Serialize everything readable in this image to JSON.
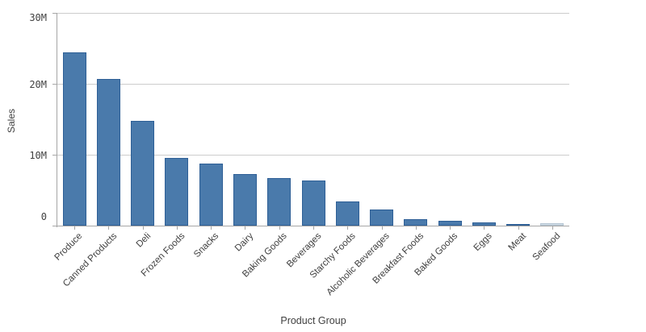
{
  "chart_data": {
    "type": "bar",
    "title": "",
    "xlabel": "Product Group",
    "ylabel": "Sales",
    "categories": [
      "Produce",
      "Canned Products",
      "Deli",
      "Frozen Foods",
      "Snacks",
      "Dairy",
      "Baking Goods",
      "Beverages",
      "Starchy Foods",
      "Alcoholic Beverages",
      "Breakfast Foods",
      "Baked Goods",
      "Eggs",
      "Meat",
      "Seafood"
    ],
    "values": [
      24.4,
      20.7,
      14.8,
      9.6,
      8.7,
      7.3,
      6.7,
      6.4,
      3.4,
      2.3,
      0.9,
      0.7,
      0.5,
      0.28,
      0.35
    ],
    "unit": "M",
    "ylim": [
      0,
      30
    ],
    "yticks": [
      {
        "value": 0,
        "label": "0"
      },
      {
        "value": 10,
        "label": "10M"
      },
      {
        "value": 20,
        "label": "20M"
      },
      {
        "value": 30,
        "label": "30M"
      }
    ],
    "grid": true,
    "legend": false,
    "muted_category": "Seafood",
    "colors": {
      "bar_fill": "#4a7aab",
      "bar_border": "#2e5f96",
      "muted_bar_fill": "#cfdae4",
      "muted_bar_border": "#b4c5d3",
      "gridline": "#cccccc",
      "axis": "#a6a6a6",
      "text": "#404040"
    }
  }
}
